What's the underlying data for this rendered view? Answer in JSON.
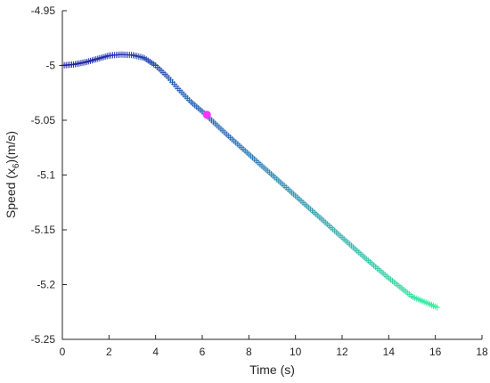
{
  "chart_data": {
    "type": "scatter",
    "xlabel": "Time (s)",
    "ylabel_main": "Speed (x",
    "ylabel_sub": "6",
    "ylabel_tail": ")(m/s)",
    "xlim": [
      0,
      18
    ],
    "ylim": [
      -5.25,
      -4.95
    ],
    "xticks": [
      0,
      2,
      4,
      6,
      8,
      10,
      12,
      14,
      16,
      18
    ],
    "yticks": [
      -4.95,
      -5,
      -5.05,
      -5.1,
      -5.15,
      -5.2,
      -5.25
    ],
    "ytick_labels": [
      "-4.95",
      "-5",
      "-5.05",
      "-5.1",
      "-5.15",
      "-5.2",
      "-5.25"
    ],
    "grid": false,
    "marker": "+",
    "color_start": "#1a1aa6",
    "color_mid": "#2a78b8",
    "color_end": "#3cf0a0",
    "key_points": {
      "x": [
        0,
        0.5,
        1.0,
        1.5,
        2.0,
        2.5,
        3.0,
        3.5,
        4.0,
        4.5,
        5.0,
        5.5,
        6.0,
        6.5,
        7.0,
        8.0,
        9.0,
        10.0,
        11.0,
        12.0,
        13.0,
        14.0,
        15.0,
        16.1
      ],
      "y": [
        -5.0,
        -4.999,
        -4.997,
        -4.994,
        -4.991,
        -4.99,
        -4.9905,
        -4.993,
        -5.0,
        -5.01,
        -5.022,
        -5.033,
        -5.042,
        -5.052,
        -5.062,
        -5.081,
        -5.1,
        -5.119,
        -5.138,
        -5.157,
        -5.176,
        -5.194,
        -5.211,
        -5.221
      ]
    },
    "highlight_point": {
      "x": 6.2,
      "y": -5.045,
      "color": "#ff33ff"
    }
  }
}
